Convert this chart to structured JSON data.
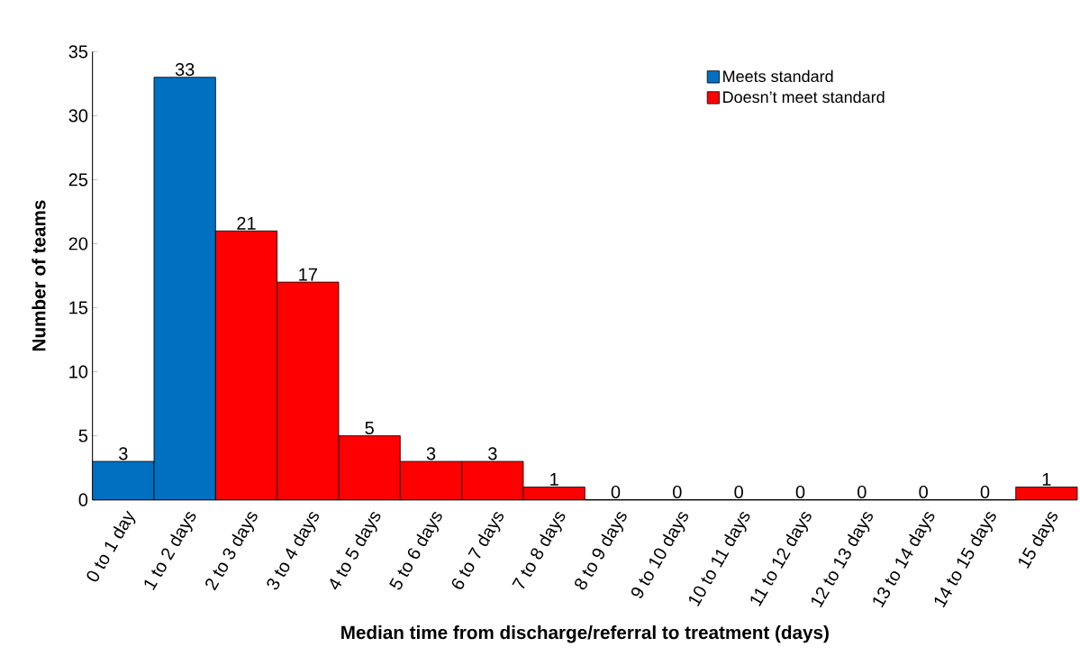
{
  "chart_data": {
    "type": "bar",
    "xlabel": "Median time from discharge/referral to treatment (days)",
    "ylabel": "Number of teams",
    "categories": [
      "0 to 1 day",
      "1 to 2 days",
      "2 to 3 days",
      "3 to 4 days",
      "4 to 5 days",
      "5 to 6 days",
      "6 to 7 days",
      "7 to 8 days",
      "8 to 9 days",
      "9 to 10 days",
      "10 to 11 days",
      "11 to 12 days",
      "12 to 13 days",
      "13 to 14 days",
      "14 to 15 days",
      "15 days"
    ],
    "series": [
      {
        "name": "Meets standard",
        "color": "#0070c0",
        "values": [
          3,
          33,
          null,
          null,
          null,
          null,
          null,
          null,
          null,
          null,
          null,
          null,
          null,
          null,
          null,
          null
        ]
      },
      {
        "name": "Doesn’t meet standard",
        "color": "#ff0000",
        "values": [
          null,
          null,
          21,
          17,
          5,
          3,
          3,
          1,
          0,
          0,
          0,
          0,
          0,
          0,
          0,
          1
        ]
      }
    ],
    "ylim": [
      0,
      35
    ],
    "yticks": [
      0,
      5,
      10,
      15,
      20,
      25,
      30,
      35
    ],
    "data_labels": true,
    "grid": false,
    "legend": "top right"
  }
}
